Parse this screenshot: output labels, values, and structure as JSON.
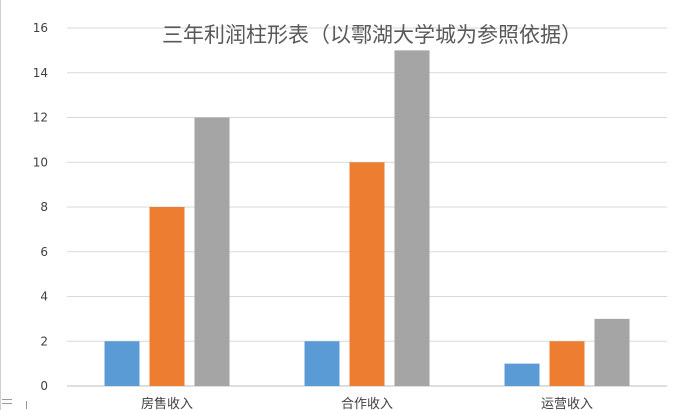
{
  "chart_data": {
    "type": "bar",
    "title": "三年利润柱形表（以鄠湖大学城为参照依据）",
    "categories": [
      "房售收入",
      "合作收入",
      "运营收入"
    ],
    "series": [
      {
        "values": [
          2,
          2,
          1
        ],
        "color": "#5b9bd5"
      },
      {
        "values": [
          8,
          10,
          2
        ],
        "color": "#ed7d31"
      },
      {
        "values": [
          12,
          15,
          3
        ],
        "color": "#a5a5a5"
      }
    ],
    "ylim": [
      0,
      16
    ],
    "yticks": [
      0,
      2,
      4,
      6,
      8,
      10,
      12,
      14,
      16
    ],
    "grid": true,
    "legend": "none"
  }
}
